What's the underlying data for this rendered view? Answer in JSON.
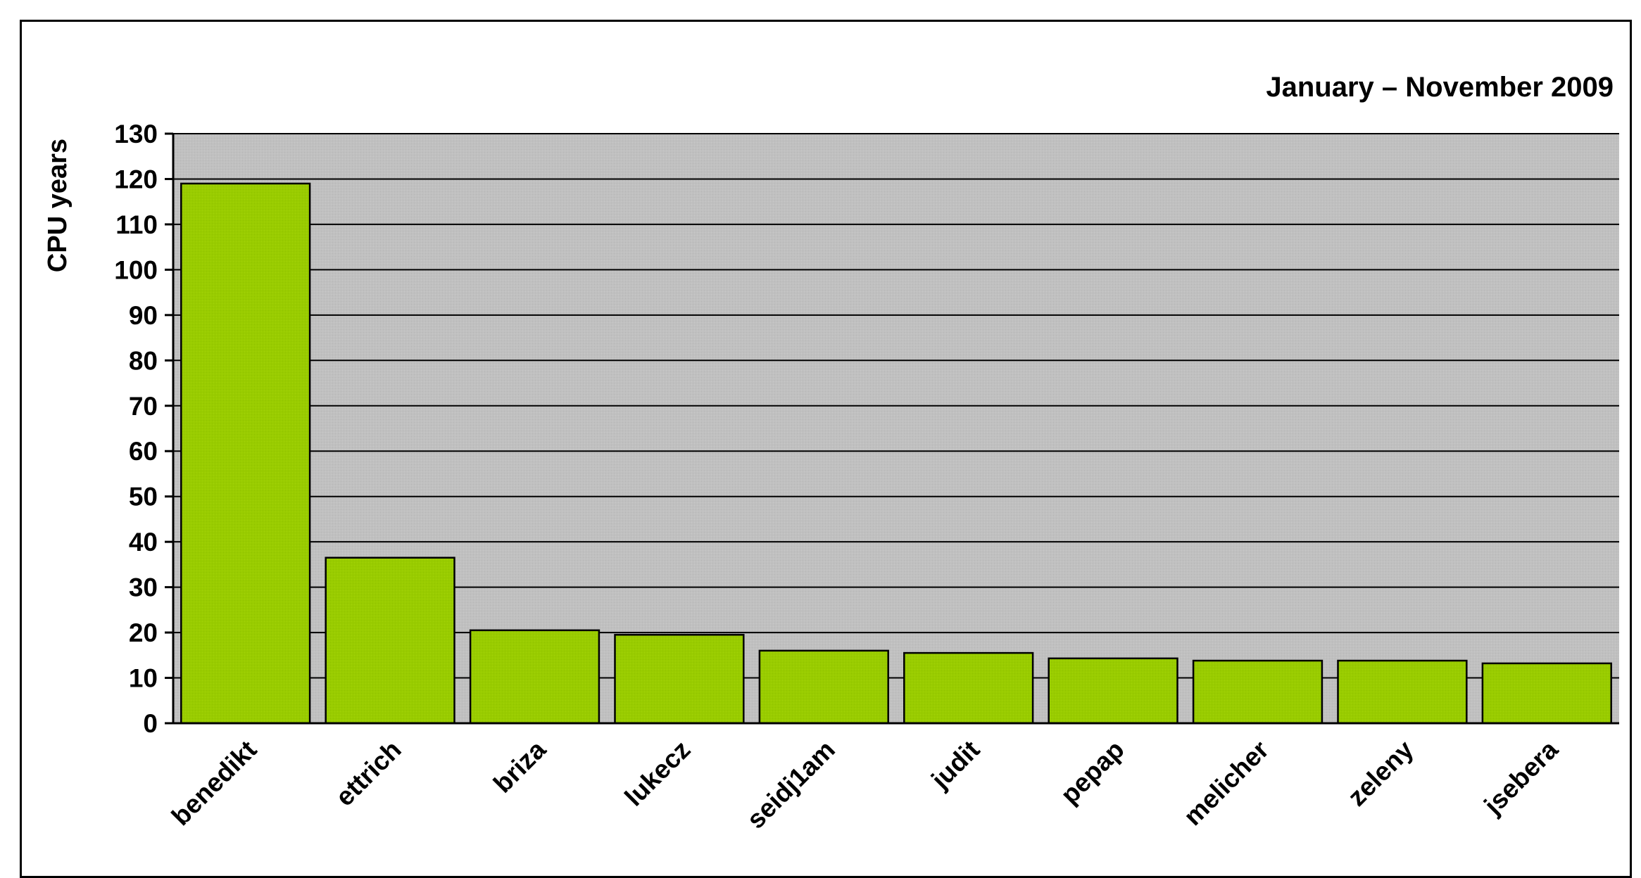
{
  "chart_data": {
    "type": "bar",
    "title": "January – November 2009",
    "xlabel": "",
    "ylabel": "CPU years",
    "ylim": [
      0,
      130
    ],
    "ytick_step": 10,
    "grid": true,
    "legend": "none",
    "categories": [
      "benedikt",
      "ettrich",
      "briza",
      "lukecz",
      "seidj1am",
      "judit",
      "pepap",
      "melicher",
      "zeleny",
      "jsebera"
    ],
    "values": [
      119,
      36.5,
      20.5,
      19.5,
      16,
      15.5,
      14.3,
      13.8,
      13.8,
      13.2
    ],
    "colors": {
      "bar": "#99cc00",
      "plot_background": "#c0c0c0",
      "gridline": "#000000",
      "bar_edge": "#000000"
    }
  }
}
